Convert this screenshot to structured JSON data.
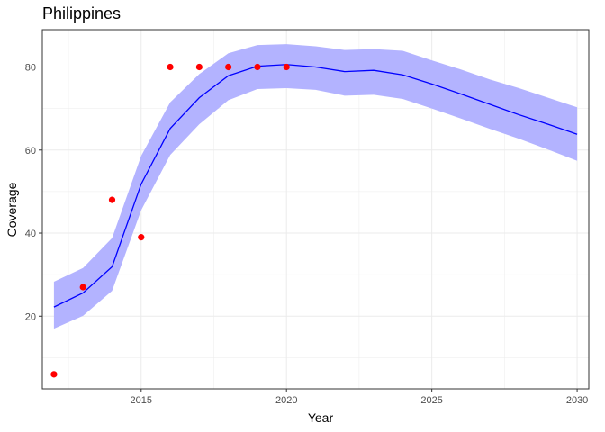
{
  "chart_data": {
    "type": "line",
    "title": "Philippines",
    "xlabel": "Year",
    "ylabel": "Coverage",
    "xlim": [
      2011.6,
      2030.4
    ],
    "ylim": [
      2.5,
      89
    ],
    "x_ticks": [
      2015,
      2020,
      2025,
      2030
    ],
    "y_ticks": [
      20,
      40,
      60,
      80
    ],
    "grid": true,
    "legend": "none",
    "colors": {
      "line": "#0000ff",
      "ribbon": "#b3b3ff",
      "points": "#ff0000",
      "grid": "#ebebeb",
      "panel_border": "#333333"
    },
    "series": [
      {
        "type": "line",
        "x": [
          2012,
          2013,
          2014,
          2015,
          2016,
          2017,
          2018,
          2019,
          2020,
          2021,
          2022,
          2023,
          2024,
          2025,
          2026,
          2027,
          2028,
          2029,
          2030
        ],
        "y": [
          22.2,
          25.6,
          31.9,
          51.8,
          65.2,
          72.6,
          77.9,
          80.2,
          80.6,
          80.0,
          78.9,
          79.2,
          78.1,
          75.9,
          73.5,
          71.0,
          68.5,
          66.2,
          63.8
        ]
      },
      {
        "type": "ribbon",
        "x": [
          2012,
          2013,
          2014,
          2015,
          2016,
          2017,
          2018,
          2019,
          2020,
          2021,
          2022,
          2023,
          2024,
          2025,
          2026,
          2027,
          2028,
          2029,
          2030
        ],
        "lower": [
          17.0,
          20.1,
          26.1,
          45.5,
          58.8,
          66.2,
          72.0,
          74.7,
          74.9,
          74.5,
          73.1,
          73.3,
          72.3,
          70.0,
          67.6,
          65.1,
          62.7,
          60.1,
          57.4
        ],
        "upper": [
          28.3,
          31.6,
          38.8,
          58.6,
          71.5,
          78.3,
          83.3,
          85.3,
          85.5,
          85.0,
          84.1,
          84.3,
          83.9,
          81.6,
          79.4,
          77.0,
          74.9,
          72.6,
          70.3
        ]
      },
      {
        "type": "scatter",
        "x": [
          2012,
          2013,
          2014,
          2015,
          2016,
          2017,
          2018,
          2019,
          2020
        ],
        "y": [
          6,
          27,
          48,
          39,
          80,
          80,
          80,
          80,
          80
        ]
      }
    ]
  }
}
